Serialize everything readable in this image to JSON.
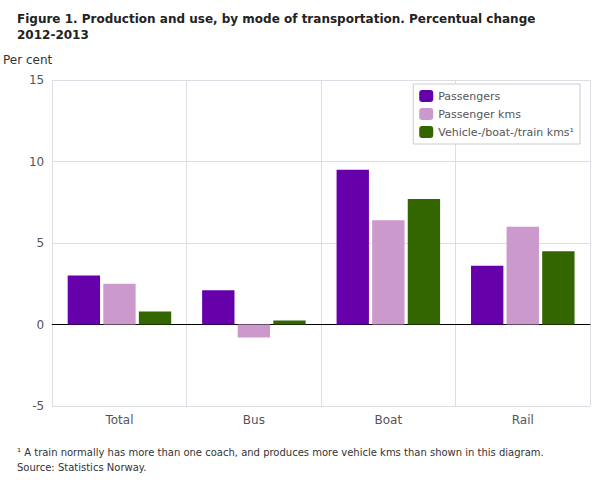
{
  "chart_data": {
    "type": "bar",
    "title": "Figure 1. Production and use, by mode of transportation. Percentual change",
    "subtitle": "2012-2013",
    "ylabel": "Per cent",
    "categories": [
      "Total",
      "Bus",
      "Boat",
      "Rail"
    ],
    "series": [
      {
        "name": "Passengers",
        "color": "#6600aa",
        "values": [
          3.0,
          2.1,
          9.5,
          3.6
        ]
      },
      {
        "name": "Passenger kms",
        "color": "#cc99cc",
        "values": [
          2.5,
          -0.8,
          6.4,
          6.0
        ]
      },
      {
        "name": "Vehicle-/boat-/train kms¹",
        "color": "#336600",
        "values": [
          0.8,
          0.25,
          7.7,
          4.5
        ]
      }
    ],
    "ylim": [
      -5,
      15
    ],
    "yticks": [
      -5,
      0,
      5,
      10,
      15
    ],
    "grid": true,
    "legend": "upper right",
    "annotations": [
      "¹ A train normally has more than one coach, and produces more vehicle kms than shown in this diagram.",
      "Source: Statistics Norway."
    ]
  }
}
